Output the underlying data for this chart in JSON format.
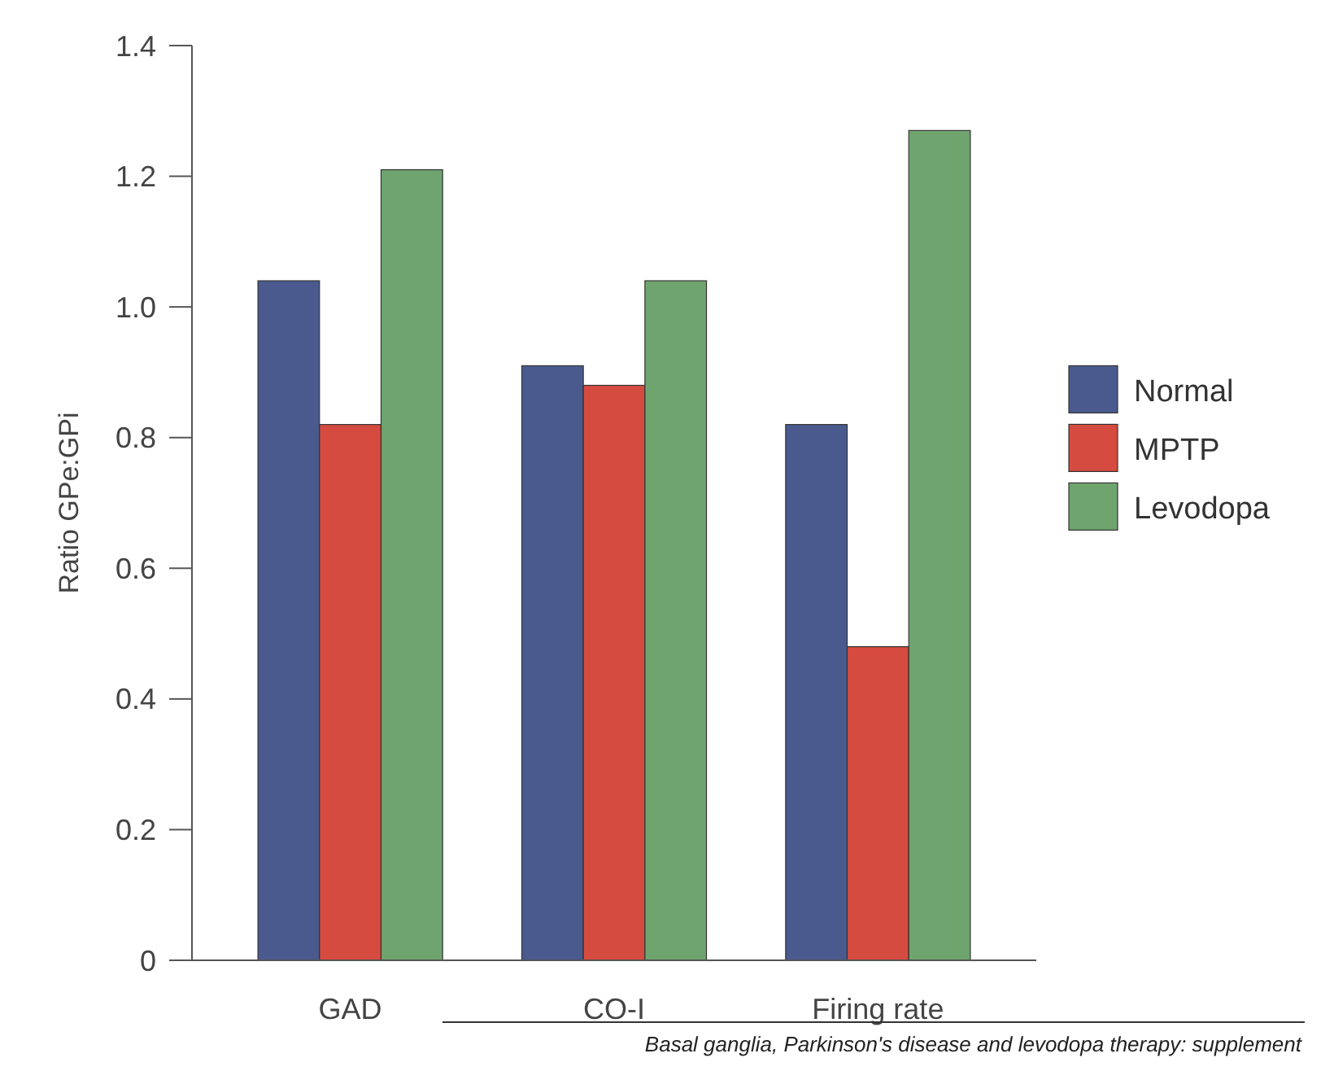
{
  "chart_data": {
    "type": "bar",
    "ylabel": "Ratio GPe:GPi",
    "categories": [
      "GAD",
      "CO-I",
      "Firing rate"
    ],
    "series": [
      {
        "name": "Normal",
        "color": "#4a5a8e",
        "values": [
          1.04,
          0.91,
          0.82
        ]
      },
      {
        "name": "MPTP",
        "color": "#d64b40",
        "values": [
          0.82,
          0.88,
          0.48
        ]
      },
      {
        "name": "Levodopa",
        "color": "#6fa46e",
        "values": [
          1.21,
          1.04,
          1.27
        ]
      }
    ],
    "ylim": [
      0,
      1.4
    ],
    "yticks": [
      0,
      {
        "value": 0.2,
        "label": "0.2"
      },
      {
        "value": 0.4,
        "label": "0.4"
      },
      {
        "value": 0.6,
        "label": "0.6"
      },
      {
        "value": 0.8,
        "label": "0.8"
      },
      {
        "value": 1.0,
        "label": "1.0"
      },
      {
        "value": 1.2,
        "label": "1.2"
      },
      {
        "value": 1.4,
        "label": "1.4"
      }
    ],
    "grid": false,
    "legend": "right",
    "annotations": [
      "Basal ganglia, Parkinson's disease and levodopa therapy: supplement"
    ]
  }
}
